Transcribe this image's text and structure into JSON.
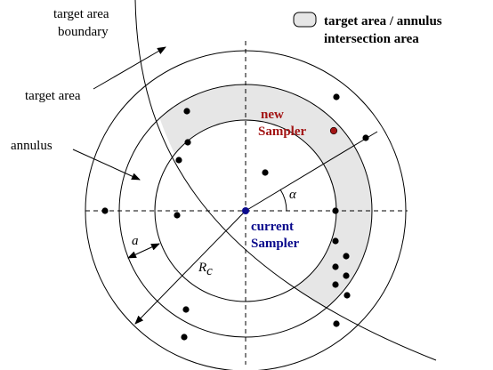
{
  "labels": {
    "target_area_boundary_line1": "target area",
    "target_area_boundary_line2": "boundary",
    "target_area": "target area",
    "annulus": "annulus",
    "legend_line1": "target area / annulus",
    "legend_line2": "intersection area",
    "new_sampler_line1": "new",
    "new_sampler_line2": "Sampler",
    "current_sampler_line1": "current",
    "current_sampler_line2": "Sampler",
    "alpha": "α",
    "a": "a",
    "rc_main": "R",
    "rc_sub": "c"
  },
  "colors": {
    "intersection_fill": "#e6e6e6",
    "new_sampler": "#a31515",
    "current_sampler": "#0a0a8c",
    "ink": "#000000"
  }
}
